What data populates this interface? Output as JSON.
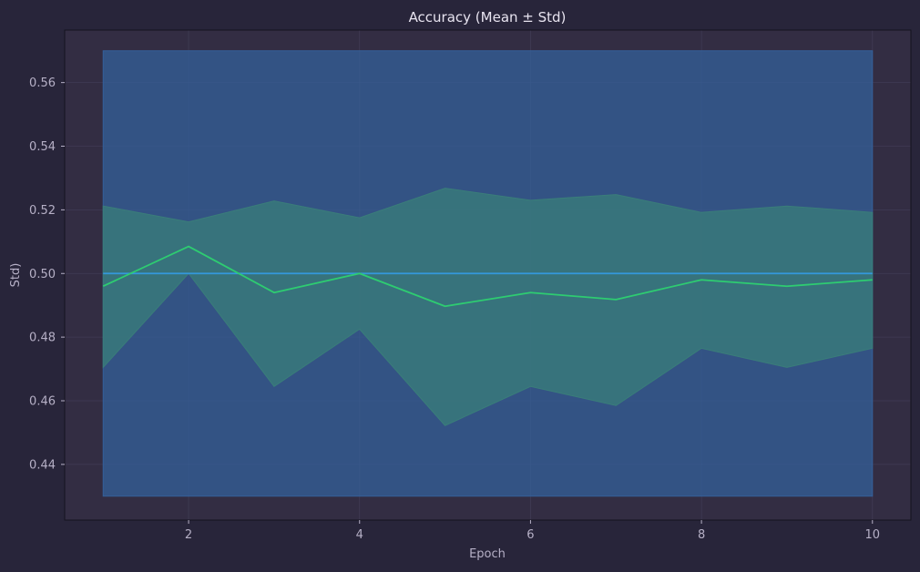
{
  "chart_data": {
    "type": "line",
    "title": "Accuracy (Mean ± Std)",
    "xlabel": "Epoch",
    "ylabel": "Std)",
    "xlim": [
      0.55,
      10.45
    ],
    "ylim": [
      0.4225,
      0.5765
    ],
    "xticks": [
      2,
      4,
      6,
      8,
      10
    ],
    "xtick_labels": [
      "2",
      "4",
      "6",
      "8",
      "10"
    ],
    "yticks": [
      0.44,
      0.46,
      0.48,
      0.5,
      0.52,
      0.54,
      0.56
    ],
    "ytick_labels": [
      "0.44",
      "0.46",
      "0.48",
      "0.50",
      "0.52",
      "0.54",
      "0.56"
    ],
    "grid": true,
    "x": [
      1,
      2,
      3,
      4,
      5,
      6,
      7,
      8,
      9,
      10
    ],
    "series": [
      {
        "values": [
          0.5,
          0.5,
          0.5,
          0.5,
          0.5,
          0.5,
          0.5,
          0.5,
          0.5,
          0.5
        ],
        "lower": [
          0.43,
          0.43,
          0.43,
          0.43,
          0.43,
          0.43,
          0.43,
          0.43,
          0.43,
          0.43
        ],
        "upper": [
          0.57,
          0.57,
          0.57,
          0.57,
          0.57,
          0.57,
          0.57,
          0.57,
          0.57,
          0.57
        ],
        "color": "#3498db",
        "band_color": "#34609a"
      },
      {
        "values": [
          0.496,
          0.5085,
          0.494,
          0.5,
          0.4897,
          0.494,
          0.4918,
          0.498,
          0.496,
          0.498
        ],
        "lower": [
          0.4705,
          0.5,
          0.4645,
          0.4825,
          0.4522,
          0.4645,
          0.4585,
          0.4765,
          0.4705,
          0.4765
        ],
        "upper": [
          0.5212,
          0.5162,
          0.5228,
          0.5175,
          0.5268,
          0.523,
          0.5248,
          0.5192,
          0.5212,
          0.5192
        ],
        "color": "#2ecc71",
        "band_color": "#3a7d7a"
      }
    ]
  },
  "colors": {
    "background": "#28253a",
    "plot_background": "#332d43",
    "grid": "#4a4560",
    "text": "#e8e4f0",
    "tick_text": "#b6b0c6"
  }
}
